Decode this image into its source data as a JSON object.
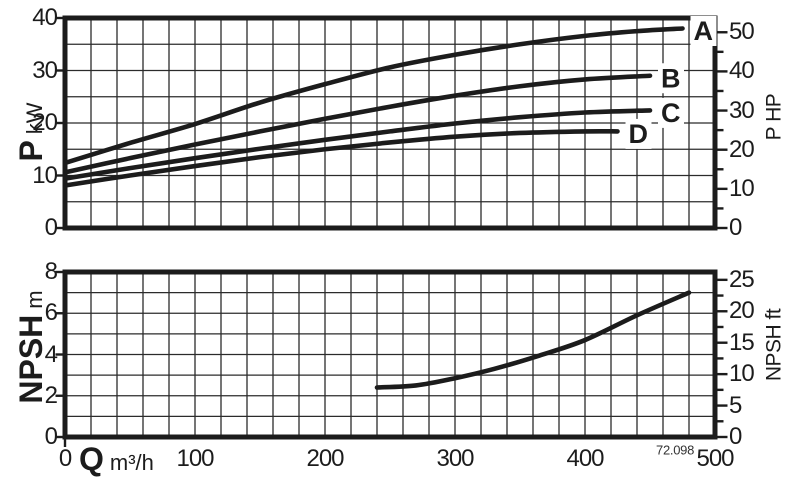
{
  "figure": {
    "background": "#ffffff",
    "ink_color": "#1c1c1c",
    "grid_color": "#2b2b2b"
  },
  "labels": {
    "p_axis_symbol": "P",
    "p_axis_unit": "kW",
    "hp_axis_title": "P HP",
    "npsh_axis_symbol": "NPSH",
    "npsh_axis_unit": "m",
    "npsh_ft_axis_title": "NPSH ft",
    "q_axis_symbol": "Q",
    "q_axis_unit": "m³/h",
    "drawing_code": "72.098"
  },
  "chart_data": [
    {
      "type": "line",
      "title": "",
      "xlabel": "Q m³/h",
      "ylabel_left": "P kW",
      "ylabel_right": "P HP",
      "xlim": [
        0,
        500
      ],
      "ylim_left": [
        0,
        40
      ],
      "x_ticks": [
        0,
        100,
        200,
        300,
        400,
        500
      ],
      "x_grid_step": 20,
      "y_ticks_left": [
        0,
        10,
        20,
        30,
        40
      ],
      "y_grid_step": 5,
      "y_ticks_right": [
        0,
        10,
        20,
        30,
        40,
        50
      ],
      "y_right_minor_step": 5,
      "y_right_factor": 0.7457,
      "grid": "on",
      "legend": "curve-end-labels",
      "series": [
        {
          "name": "A",
          "show_label": true,
          "points": [
            [
              0,
              12.4
            ],
            [
              50,
              16.2
            ],
            [
              100,
              19.8
            ],
            [
              150,
              23.9
            ],
            [
              200,
              27.4
            ],
            [
              250,
              30.6
            ],
            [
              300,
              33.0
            ],
            [
              350,
              35.0
            ],
            [
              400,
              36.6
            ],
            [
              440,
              37.5
            ],
            [
              475,
              38.0
            ]
          ]
        },
        {
          "name": "B",
          "show_label": true,
          "points": [
            [
              0,
              10.6
            ],
            [
              50,
              13.3
            ],
            [
              100,
              15.9
            ],
            [
              150,
              18.4
            ],
            [
              200,
              20.8
            ],
            [
              250,
              23.1
            ],
            [
              300,
              25.2
            ],
            [
              350,
              27.0
            ],
            [
              400,
              28.3
            ],
            [
              450,
              29.0
            ]
          ]
        },
        {
          "name": "C",
          "show_label": true,
          "points": [
            [
              0,
              9.4
            ],
            [
              50,
              11.4
            ],
            [
              100,
              13.3
            ],
            [
              150,
              15.1
            ],
            [
              200,
              16.8
            ],
            [
              250,
              18.4
            ],
            [
              300,
              19.9
            ],
            [
              350,
              21.1
            ],
            [
              400,
              22.0
            ],
            [
              450,
              22.4
            ]
          ]
        },
        {
          "name": "D",
          "show_label": true,
          "points": [
            [
              0,
              8.1
            ],
            [
              50,
              10.0
            ],
            [
              100,
              11.8
            ],
            [
              150,
              13.5
            ],
            [
              200,
              15.0
            ],
            [
              250,
              16.3
            ],
            [
              300,
              17.4
            ],
            [
              350,
              18.1
            ],
            [
              400,
              18.4
            ],
            [
              425,
              18.4
            ]
          ]
        }
      ]
    },
    {
      "type": "line",
      "title": "",
      "xlabel": "Q m³/h",
      "ylabel_left": "NPSH m",
      "ylabel_right": "NPSH ft",
      "xlim": [
        0,
        500
      ],
      "ylim_left": [
        0,
        8
      ],
      "x_ticks": [
        0,
        100,
        200,
        300,
        400,
        500
      ],
      "x_grid_step": 20,
      "y_ticks_left": [
        0,
        2,
        4,
        6,
        8
      ],
      "y_grid_step": 1,
      "y_ticks_right": [
        0,
        5,
        10,
        15,
        20,
        25
      ],
      "y_right_minor_step": 2.5,
      "y_right_factor": 0.3048,
      "grid": "on",
      "legend": "none",
      "series": [
        {
          "name": "NPSH",
          "show_label": false,
          "points": [
            [
              240,
              2.4
            ],
            [
              270,
              2.5
            ],
            [
              300,
              2.85
            ],
            [
              330,
              3.3
            ],
            [
              365,
              3.95
            ],
            [
              400,
              4.7
            ],
            [
              440,
              5.9
            ],
            [
              480,
              7.0
            ]
          ]
        }
      ]
    }
  ]
}
